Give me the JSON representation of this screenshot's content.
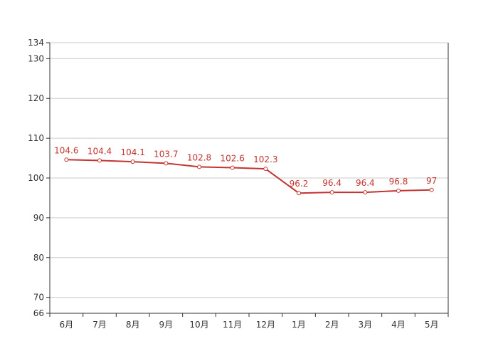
{
  "chart_data": {
    "type": "line",
    "title": "",
    "xlabel": "",
    "ylabel": "",
    "categories": [
      "6月",
      "7月",
      "8月",
      "9月",
      "10月",
      "11月",
      "12月",
      "1月",
      "2月",
      "3月",
      "4月",
      "5月"
    ],
    "series": [
      {
        "values": [
          104.6,
          104.4,
          104.1,
          103.7,
          102.8,
          102.6,
          102.3,
          96.2,
          96.4,
          96.4,
          96.8,
          97
        ]
      }
    ],
    "data_labels": [
      "104.6",
      "104.4",
      "104.1",
      "103.7",
      "102.8",
      "102.6",
      "102.3",
      "96.2",
      "96.4",
      "96.4",
      "96.8",
      "97"
    ],
    "ylim": [
      66,
      134
    ],
    "yticks": [
      66,
      70,
      80,
      90,
      100,
      110,
      120,
      130,
      134
    ],
    "grid": true,
    "legend": "none",
    "colors": {
      "series": "#c23531",
      "grid": "#cccccc",
      "axis": "#333333",
      "text": "#333333"
    }
  }
}
